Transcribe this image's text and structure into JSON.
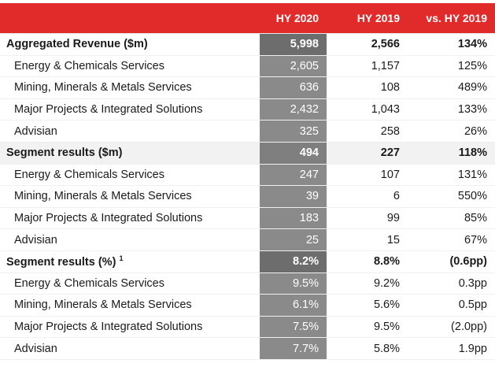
{
  "header": {
    "col_hy2020": "HY 2020",
    "col_hy2019": "HY 2019",
    "col_vs": "vs. HY 2019"
  },
  "rows": [
    {
      "label": "Aggregated Revenue ($m)",
      "hy2020": "5,998",
      "hy2019": "2,566",
      "vs": "134%"
    },
    {
      "label": "Energy & Chemicals Services",
      "hy2020": "2,605",
      "hy2019": "1,157",
      "vs": "125%"
    },
    {
      "label": "Mining, Minerals & Metals Services",
      "hy2020": "636",
      "hy2019": "108",
      "vs": "489%"
    },
    {
      "label": "Major Projects & Integrated Solutions",
      "hy2020": "2,432",
      "hy2019": "1,043",
      "vs": "133%"
    },
    {
      "label": "Advisian",
      "hy2020": "325",
      "hy2019": "258",
      "vs": "26%"
    },
    {
      "label": "Segment results ($m)",
      "hy2020": "494",
      "hy2019": "227",
      "vs": "118%"
    },
    {
      "label": "Energy & Chemicals Services",
      "hy2020": "247",
      "hy2019": "107",
      "vs": "131%"
    },
    {
      "label": "Mining, Minerals & Metals Services",
      "hy2020": "39",
      "hy2019": "6",
      "vs": "550%"
    },
    {
      "label": "Major Projects & Integrated Solutions",
      "hy2020": "183",
      "hy2019": "99",
      "vs": "85%"
    },
    {
      "label": "Advisian",
      "hy2020": "25",
      "hy2019": "15",
      "vs": "67%"
    },
    {
      "label": "Segment results (%)",
      "footnote": "1",
      "hy2020": "8.2%",
      "hy2019": "8.8%",
      "vs": "(0.6pp)"
    },
    {
      "label": "Energy & Chemicals Services",
      "hy2020": "9.5%",
      "hy2019": "9.2%",
      "vs": "0.3pp"
    },
    {
      "label": "Mining, Minerals & Metals Services",
      "hy2020": "6.1%",
      "hy2019": "5.6%",
      "vs": "0.5pp"
    },
    {
      "label": "Major Projects & Integrated Solutions",
      "hy2020": "7.5%",
      "hy2019": "9.5%",
      "vs": "(2.0pp)"
    },
    {
      "label": "Advisian",
      "hy2020": "7.7%",
      "hy2019": "5.8%",
      "vs": "1.9pp"
    }
  ]
}
